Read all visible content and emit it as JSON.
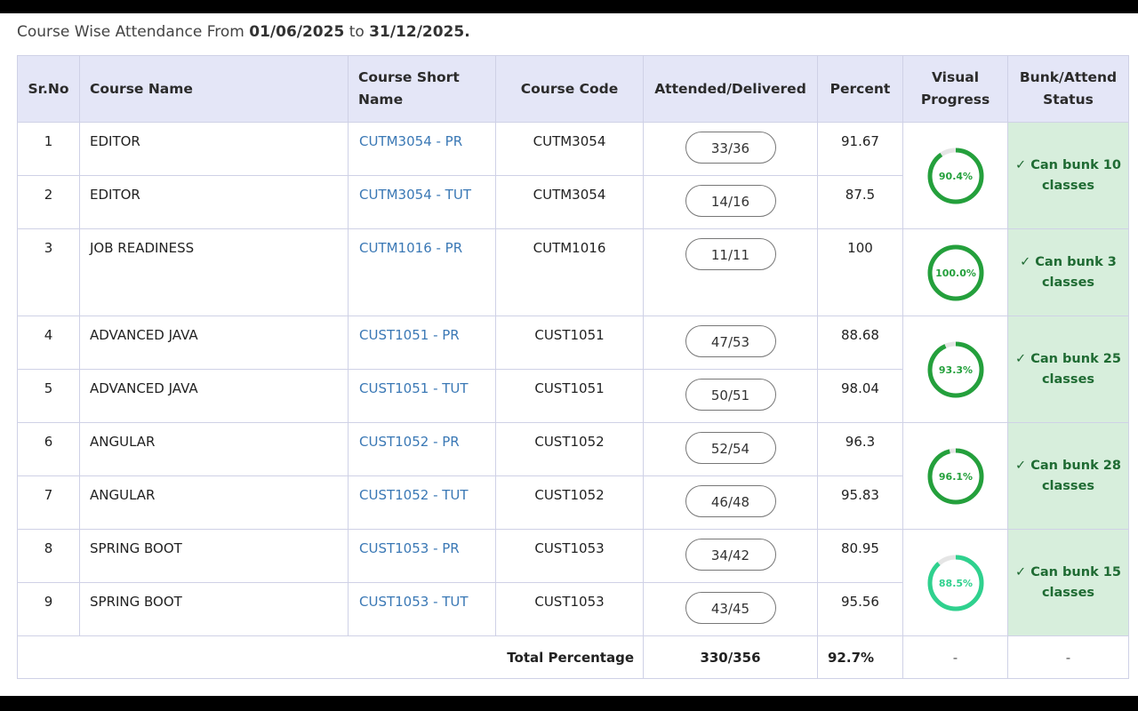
{
  "heading": {
    "prefix": "Course Wise Attendance From ",
    "from_date": "01/06/2025",
    "middle": " to ",
    "to_date": "31/12/2025."
  },
  "columns": {
    "srno": "Sr.No",
    "course_name": "Course Name",
    "short_name": "Course Short Name",
    "course_code": "Course Code",
    "attended": "Attended/Delivered",
    "percent": "Percent",
    "visual": "Visual Progress",
    "status": "Bunk/Attend Status"
  },
  "rows": [
    {
      "sr": "1",
      "name": "EDITOR",
      "short": "CUTM3054 - PR",
      "code": "CUTM3054",
      "att": "33/36",
      "pct": "91.67"
    },
    {
      "sr": "2",
      "name": "EDITOR",
      "short": "CUTM3054 - TUT",
      "code": "CUTM3054",
      "att": "14/16",
      "pct": "87.5"
    },
    {
      "sr": "3",
      "name": "JOB READINESS",
      "short": "CUTM1016 - PR",
      "code": "CUTM1016",
      "att": "11/11",
      "pct": "100"
    },
    {
      "sr": "4",
      "name": "ADVANCED JAVA",
      "short": "CUST1051 - PR",
      "code": "CUST1051",
      "att": "47/53",
      "pct": "88.68"
    },
    {
      "sr": "5",
      "name": "ADVANCED JAVA",
      "short": "CUST1051 - TUT",
      "code": "CUST1051",
      "att": "50/51",
      "pct": "98.04"
    },
    {
      "sr": "6",
      "name": "ANGULAR",
      "short": "CUST1052 - PR",
      "code": "CUST1052",
      "att": "52/54",
      "pct": "96.3"
    },
    {
      "sr": "7",
      "name": "ANGULAR",
      "short": "CUST1052 - TUT",
      "code": "CUST1052",
      "att": "46/48",
      "pct": "95.83"
    },
    {
      "sr": "8",
      "name": "SPRING BOOT",
      "short": "CUST1053 - PR",
      "code": "CUST1053",
      "att": "34/42",
      "pct": "80.95"
    },
    {
      "sr": "9",
      "name": "SPRING BOOT",
      "short": "CUST1053 - TUT",
      "code": "CUST1053",
      "att": "43/45",
      "pct": "95.56"
    }
  ],
  "groups": [
    {
      "progress_label": "90.4%",
      "progress_value": 90.4,
      "color": "#24a03c",
      "status": "✓ Can bunk 10 classes"
    },
    {
      "progress_label": "100.0%",
      "progress_value": 100.0,
      "color": "#24a03c",
      "status": "✓ Can bunk 3 classes"
    },
    {
      "progress_label": "93.3%",
      "progress_value": 93.3,
      "color": "#24a03c",
      "status": "✓ Can bunk 25 classes"
    },
    {
      "progress_label": "96.1%",
      "progress_value": 96.1,
      "color": "#24a03c",
      "status": "✓ Can bunk 28 classes"
    },
    {
      "progress_label": "88.5%",
      "progress_value": 88.5,
      "color": "#2fd18e",
      "status": "✓ Can bunk 15 classes"
    }
  ],
  "total": {
    "label": "Total Percentage",
    "attended": "330/356",
    "percent": "92.7%",
    "visual": "-",
    "status": "-"
  },
  "colors": {
    "header_bg": "#e4e6f7",
    "status_bg": "#d7eedc",
    "status_text": "#1f6b33",
    "link_text": "#3a78b5",
    "ring_track": "#e5e5e5"
  }
}
